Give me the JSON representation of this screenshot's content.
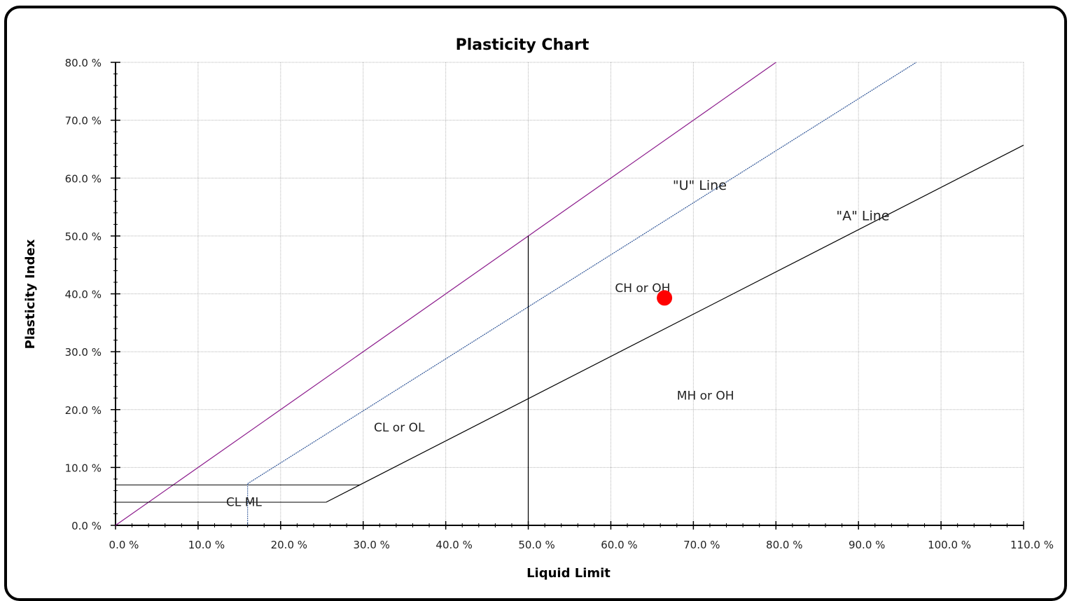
{
  "chart_data": {
    "type": "scatter",
    "title": "Plasticity Chart",
    "xlabel": "Liquid Limit",
    "ylabel": "Plasticity Index",
    "xlim": [
      0,
      110
    ],
    "ylim": [
      0,
      80
    ],
    "x_ticks": [
      "0.0 %",
      "10.0 %",
      "20.0 %",
      "30.0 %",
      "40.0 %",
      "50.0 %",
      "60.0 %",
      "70.0 %",
      "80.0 %",
      "90.0 %",
      "100.0 %",
      "110.0 %"
    ],
    "y_ticks": [
      "0.0 %",
      "10.0 %",
      "20.0 %",
      "30.0 %",
      "40.0 %",
      "50.0 %",
      "60.0 %",
      "70.0 %",
      "80.0 %"
    ],
    "grid": true,
    "points": [
      {
        "x": 66.5,
        "y": 39.3,
        "color": "#ff0000"
      }
    ],
    "lines": {
      "upper_bound": {
        "color": "#8b1a8b",
        "points": [
          [
            0,
            0
          ],
          [
            80,
            80
          ]
        ]
      },
      "u_line": {
        "label": "\"U\" Line",
        "color": "#2f5597",
        "points": [
          [
            16,
            7.2
          ],
          [
            97,
            80
          ]
        ]
      },
      "a_line": {
        "label": "\"A\" Line",
        "color": "#000000",
        "points": [
          [
            25.5,
            4
          ],
          [
            29.6,
            7
          ],
          [
            110,
            65.7
          ]
        ]
      },
      "ll50_divider": {
        "color": "#000000",
        "points": [
          [
            50,
            0
          ],
          [
            50,
            50
          ]
        ]
      },
      "cl_ml_upper": {
        "color": "#000000",
        "points": [
          [
            0,
            7
          ],
          [
            29.6,
            7
          ]
        ]
      },
      "cl_ml_lower": {
        "color": "#000000",
        "points": [
          [
            0,
            4
          ],
          [
            25.5,
            4
          ]
        ]
      },
      "u_line_vertical": {
        "color": "#2f5597",
        "points": [
          [
            16,
            0
          ],
          [
            16,
            7.2
          ]
        ]
      }
    },
    "annotations": [
      {
        "text": "\"U\" Line",
        "x": 67.5,
        "y": 58
      },
      {
        "text": "\"A\" Line",
        "x": 87.3,
        "y": 52.7
      },
      {
        "text": "CH or OH",
        "x": 60.5,
        "y": 40.3
      },
      {
        "text": "MH or OH",
        "x": 68,
        "y": 21.7
      },
      {
        "text": "CL or OL",
        "x": 31.3,
        "y": 16.2
      },
      {
        "text": "CL ML",
        "x": 13.4,
        "y": 3.3
      }
    ]
  }
}
